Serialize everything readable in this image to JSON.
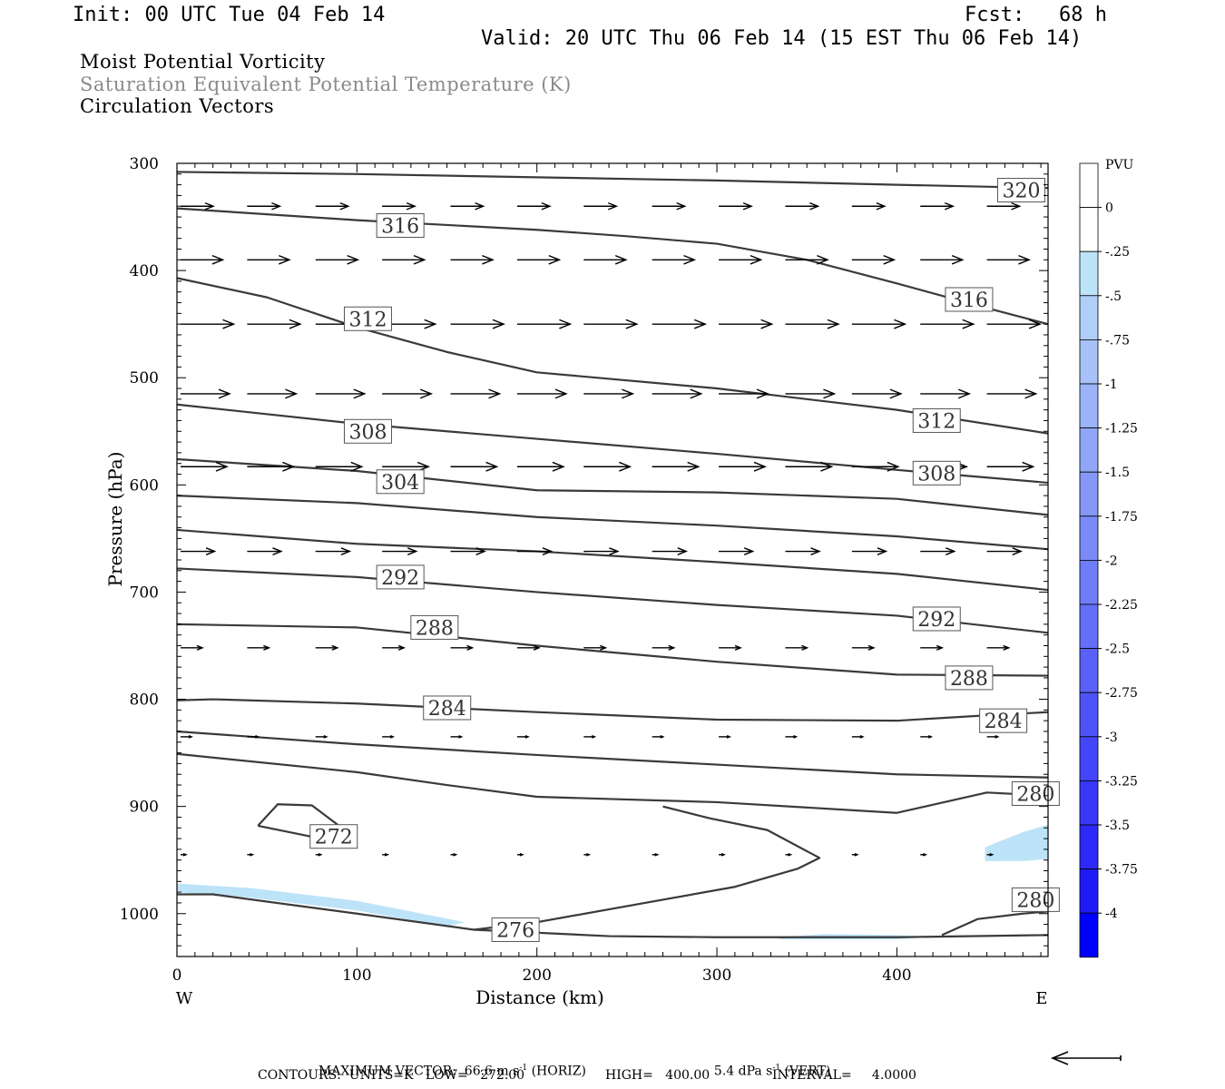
{
  "header": {
    "init": "Init: 00 UTC Tue 04 Feb 14",
    "fcst_label": "Fcst:",
    "fcst_value": "68 h",
    "valid": "Valid: 20 UTC Thu 06 Feb 14 (15 EST Thu 06 Feb 14)"
  },
  "titles": {
    "line1": "Moist Potential Vorticity",
    "line2": "Saturation Equivalent Potential Temperature (K)",
    "line3": "Circulation Vectors"
  },
  "footer": {
    "max_vector_label": "MAXIMUM VECTOR:",
    "max_horiz": "66.6 m s",
    "max_horiz_exp": "-1",
    "max_horiz_tag": "(HORIZ)",
    "max_vert": "5.4 dPa s",
    "max_vert_exp": "-1",
    "max_vert_tag": "(VERT)",
    "contours": "CONTOURS:  UNITS=K   LOW=   272.00",
    "high": "HIGH=   400.00",
    "interval": "INTERVAL=     4.0000"
  },
  "colors": {
    "contour": "#3a3a3a",
    "shade": "#bde3f8",
    "accent": "#0000ff"
  },
  "chart_data": {
    "type": "cross-section",
    "xlabel": "Distance (km)",
    "ylabel": "Pressure (hPa)",
    "x_ticks": [
      0,
      100,
      200,
      300,
      400
    ],
    "y_ticks": [
      300,
      400,
      500,
      600,
      700,
      800,
      900,
      1000
    ],
    "xlim": [
      0,
      484
    ],
    "ylim": [
      1040,
      300
    ],
    "left_end": "W",
    "right_end": "E",
    "contour_levels_labeled": [
      320,
      316,
      316,
      312,
      312,
      308,
      308,
      304,
      292,
      292,
      288,
      288,
      284,
      284,
      280,
      280,
      276,
      272
    ],
    "contours": [
      {
        "pts": [
          [
            0,
            308
          ],
          [
            100,
            310
          ],
          [
            200,
            313
          ],
          [
            300,
            316
          ],
          [
            400,
            320
          ],
          [
            484,
            323
          ]
        ]
      },
      {
        "pts": [
          [
            0,
            342
          ],
          [
            100,
            353
          ],
          [
            200,
            362
          ],
          [
            250,
            368
          ],
          [
            300,
            375
          ],
          [
            350,
            390
          ],
          [
            400,
            412
          ],
          [
            450,
            435
          ],
          [
            484,
            450
          ]
        ]
      },
      {
        "pts": [
          [
            0,
            407
          ],
          [
            50,
            425
          ],
          [
            100,
            453
          ],
          [
            150,
            476
          ],
          [
            200,
            495
          ],
          [
            300,
            510
          ],
          [
            400,
            530
          ],
          [
            484,
            552
          ]
        ]
      },
      {
        "pts": [
          [
            0,
            525
          ],
          [
            100,
            543
          ],
          [
            200,
            557
          ],
          [
            300,
            571
          ],
          [
            400,
            586
          ],
          [
            484,
            598
          ]
        ]
      },
      {
        "pts": [
          [
            0,
            576
          ],
          [
            100,
            587
          ],
          [
            200,
            605
          ],
          [
            300,
            607
          ],
          [
            400,
            613
          ],
          [
            484,
            628
          ]
        ]
      },
      {
        "pts": [
          [
            0,
            610
          ],
          [
            100,
            617
          ],
          [
            200,
            630
          ],
          [
            300,
            638
          ],
          [
            400,
            648
          ],
          [
            484,
            660
          ]
        ]
      },
      {
        "pts": [
          [
            0,
            642
          ],
          [
            100,
            655
          ],
          [
            200,
            662
          ],
          [
            300,
            672
          ],
          [
            400,
            683
          ],
          [
            484,
            698
          ]
        ]
      },
      {
        "pts": [
          [
            0,
            678
          ],
          [
            100,
            686
          ],
          [
            200,
            700
          ],
          [
            300,
            712
          ],
          [
            400,
            722
          ],
          [
            484,
            738
          ]
        ]
      },
      {
        "pts": [
          [
            0,
            730
          ],
          [
            100,
            733
          ],
          [
            200,
            750
          ],
          [
            300,
            765
          ],
          [
            400,
            777
          ],
          [
            484,
            778
          ]
        ]
      },
      {
        "pts": [
          [
            0,
            801
          ],
          [
            20,
            800
          ],
          [
            100,
            804
          ],
          [
            200,
            812
          ],
          [
            300,
            819
          ],
          [
            400,
            820
          ],
          [
            450,
            815
          ],
          [
            484,
            812
          ]
        ]
      },
      {
        "pts": [
          [
            0,
            830
          ],
          [
            100,
            842
          ],
          [
            200,
            852
          ],
          [
            300,
            861
          ],
          [
            400,
            870
          ],
          [
            484,
            873
          ]
        ]
      },
      {
        "pts": [
          [
            0,
            851
          ],
          [
            100,
            868
          ],
          [
            150,
            880
          ],
          [
            200,
            891
          ],
          [
            300,
            896
          ],
          [
            400,
            906
          ],
          [
            450,
            887
          ],
          [
            484,
            890
          ]
        ]
      },
      {
        "pts": [
          [
            0,
            980
          ],
          [
            100,
            1000
          ],
          [
            170,
            1015
          ],
          [
            200,
            1008
          ],
          [
            260,
            992
          ],
          [
            300,
            982
          ],
          [
            340,
            965
          ],
          [
            357,
            950
          ],
          [
            330,
            925
          ],
          [
            300,
            915
          ],
          [
            250,
            900
          ],
          [
            200,
            893
          ],
          [
            484,
            900
          ]
        ],
        "hidden": true
      },
      {
        "pts": [
          [
            0,
            982
          ],
          [
            20,
            982
          ],
          [
            100,
            1000
          ],
          [
            165,
            1015
          ],
          [
            200,
            1008
          ],
          [
            260,
            990
          ],
          [
            310,
            975
          ],
          [
            345,
            958
          ],
          [
            357,
            948
          ],
          [
            328,
            922
          ],
          [
            296,
            911
          ],
          [
            270,
            900
          ]
        ],
        "part": "a"
      },
      {
        "pts": [
          [
            165,
            1015
          ],
          [
            240,
            1021
          ],
          [
            300,
            1022
          ],
          [
            400,
            1022
          ],
          [
            484,
            1020
          ]
        ],
        "part": "b"
      },
      {
        "pts": [
          [
            425,
            1020
          ],
          [
            445,
            1005
          ],
          [
            470,
            1000
          ],
          [
            484,
            998
          ]
        ],
        "part": "c"
      },
      {
        "pts": [
          [
            45,
            918
          ],
          [
            56,
            898
          ],
          [
            75,
            899
          ],
          [
            90,
            918
          ],
          [
            97,
            928
          ],
          [
            80,
            930
          ],
          [
            45,
            918
          ]
        ],
        "part": "ring"
      }
    ],
    "labels": [
      {
        "text": "320",
        "x": 456,
        "y": 325
      },
      {
        "text": "316",
        "x": 111,
        "y": 358
      },
      {
        "text": "316",
        "x": 427,
        "y": 427
      },
      {
        "text": "312",
        "x": 93,
        "y": 445
      },
      {
        "text": "312",
        "x": 409,
        "y": 540
      },
      {
        "text": "308",
        "x": 93,
        "y": 550
      },
      {
        "text": "308",
        "x": 409,
        "y": 589
      },
      {
        "text": "304",
        "x": 111,
        "y": 597
      },
      {
        "text": "292",
        "x": 111,
        "y": 686
      },
      {
        "text": "292",
        "x": 409,
        "y": 725
      },
      {
        "text": "288",
        "x": 130,
        "y": 733
      },
      {
        "text": "288",
        "x": 427,
        "y": 780
      },
      {
        "text": "284",
        "x": 137,
        "y": 808
      },
      {
        "text": "284",
        "x": 446,
        "y": 820
      },
      {
        "text": "280",
        "x": 464,
        "y": 888
      },
      {
        "text": "280",
        "x": 464,
        "y": 987
      },
      {
        "text": "276",
        "x": 175,
        "y": 1015
      },
      {
        "text": "272",
        "x": 74,
        "y": 928
      }
    ],
    "colorbar": {
      "unit": "PVU",
      "labels": [
        "0",
        "-.25",
        "-.5",
        "-.75",
        "-1",
        "-1.25",
        "-1.5",
        "-1.75",
        "-2",
        "-2.25",
        "-2.5",
        "-2.75",
        "-3",
        "-3.25",
        "-3.5",
        "-3.75",
        "-4"
      ],
      "colors": [
        "#ffffff",
        "#ffffff",
        "#bde3f8",
        "#b0cff8",
        "#a6c2f8",
        "#9bb4f8",
        "#90a6f8",
        "#8598f8",
        "#7a8bf8",
        "#6f7df8",
        "#646ff8",
        "#5961f8",
        "#4e53f8",
        "#4345f8",
        "#3837f8",
        "#2d29f8",
        "#1f1bf8",
        "#0000ff"
      ]
    },
    "vectors": {
      "levels": [
        340,
        390,
        450,
        515,
        583,
        662,
        752,
        835,
        945
      ],
      "lengths": [
        0.48,
        0.62,
        0.78,
        0.72,
        0.68,
        0.5,
        0.32,
        0.16,
        0.08
      ]
    }
  }
}
